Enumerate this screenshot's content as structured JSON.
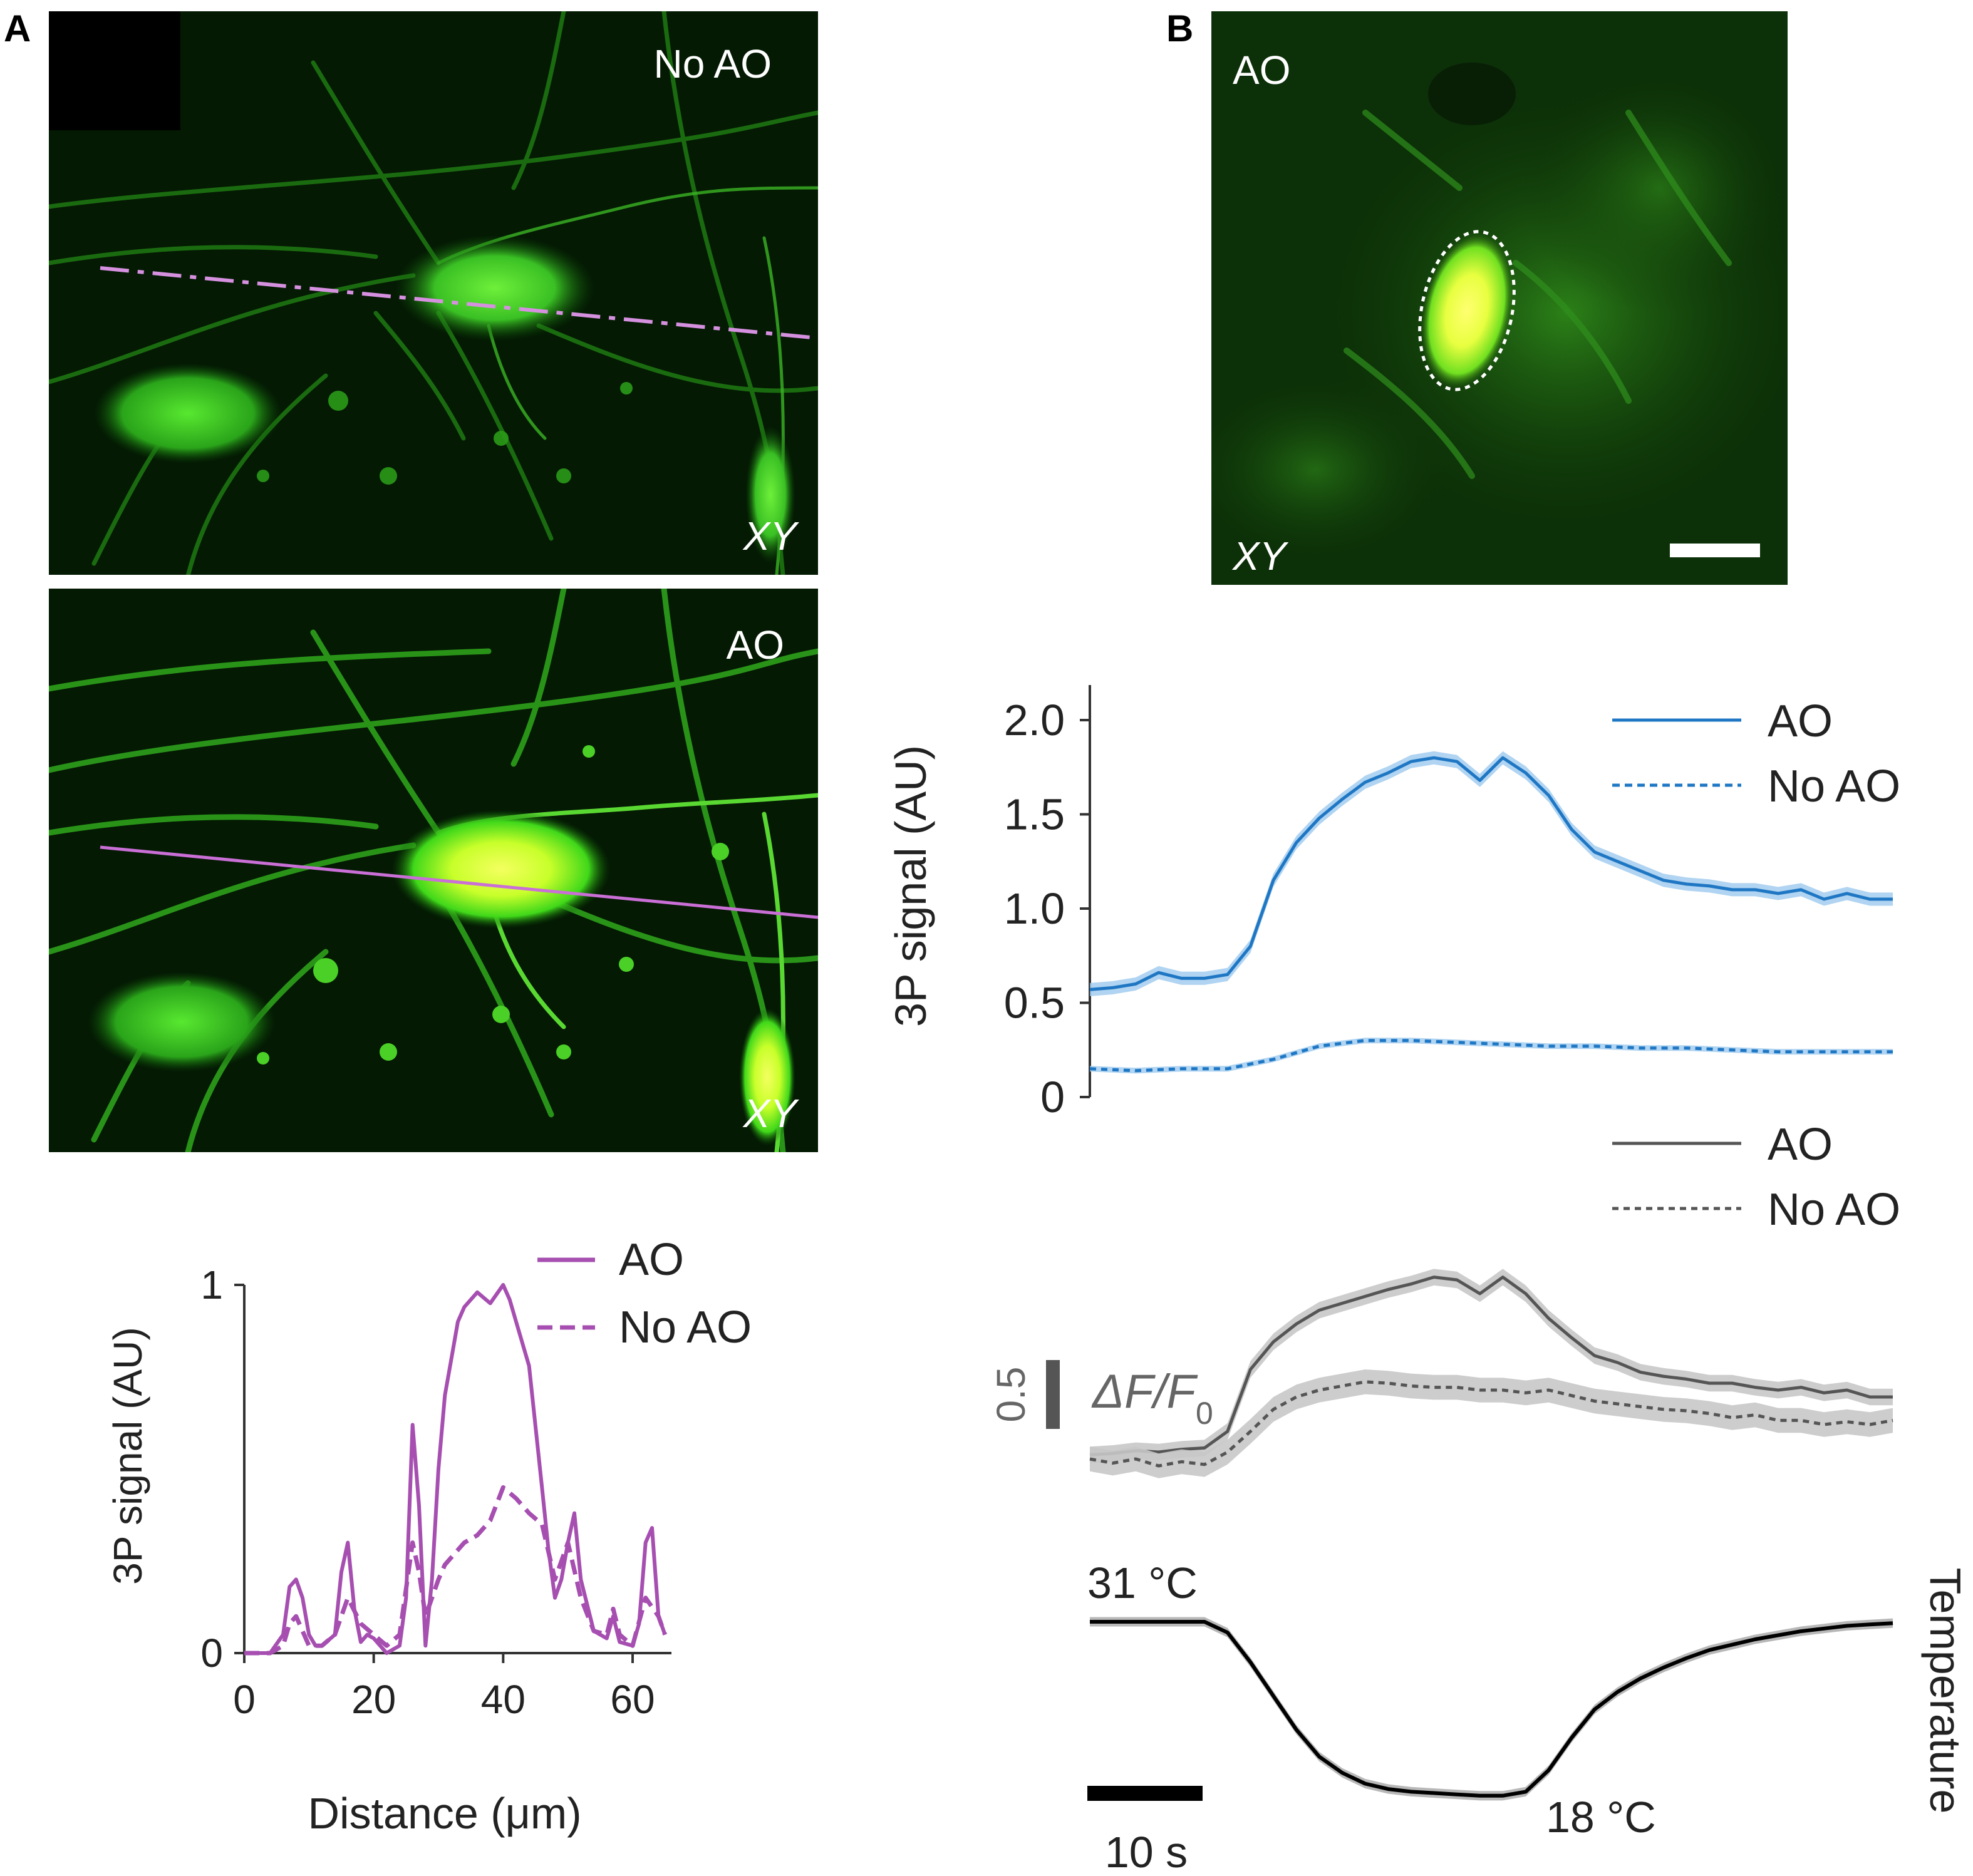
{
  "panels": {
    "a": {
      "letter": "A",
      "image_top": {
        "label": "No AO",
        "plane": "XY"
      },
      "image_bottom": {
        "label": "AO",
        "plane": "XY"
      },
      "colors": {
        "magenta": "#a64fb1"
      }
    },
    "b": {
      "letter": "B",
      "image": {
        "label": "AO",
        "plane": "XY"
      },
      "colors": {
        "blue": "#1f77c4",
        "grey": "#555555",
        "grey_band": "#c8c8c8"
      },
      "dff_scale": {
        "value": "0.5",
        "label_delta": "ΔF/F",
        "label_sub": "0"
      },
      "temperature": {
        "start": "31 °C",
        "end": "18 °C",
        "label": "Temperature",
        "time_scale": "10 s"
      }
    }
  },
  "chart_data": [
    {
      "type": "line",
      "panel": "A",
      "xlabel": "Distance (μm)",
      "ylabel": "3P signal (AU)",
      "xlim": [
        0,
        66
      ],
      "ylim": [
        0,
        1
      ],
      "xticks": [
        "0",
        "20",
        "40",
        "60"
      ],
      "yticks": [
        "0",
        "1"
      ],
      "legend": "top-right",
      "series": [
        {
          "name": "AO",
          "style": "solid",
          "x": [
            0,
            4,
            6,
            7,
            8,
            9,
            10,
            11,
            12,
            14,
            15,
            16,
            17,
            18,
            19,
            20,
            22,
            24,
            25,
            26,
            27,
            28,
            29,
            30,
            31,
            32,
            33,
            34,
            36,
            38,
            40,
            41,
            42,
            44,
            46,
            47,
            48,
            49,
            50,
            51,
            52,
            54,
            56,
            57,
            58,
            60,
            61,
            62,
            63,
            64,
            65
          ],
          "y": [
            0,
            0,
            0.05,
            0.18,
            0.2,
            0.15,
            0.05,
            0.02,
            0.02,
            0.05,
            0.22,
            0.3,
            0.12,
            0.03,
            0.05,
            0.04,
            0,
            0.02,
            0.15,
            0.62,
            0.4,
            0.02,
            0.2,
            0.5,
            0.7,
            0.8,
            0.9,
            0.94,
            0.98,
            0.95,
            1.0,
            0.96,
            0.9,
            0.78,
            0.45,
            0.28,
            0.15,
            0.2,
            0.3,
            0.38,
            0.2,
            0.06,
            0.04,
            0.1,
            0.03,
            0.02,
            0.08,
            0.3,
            0.34,
            0.1,
            0.05
          ]
        },
        {
          "name": "No AO",
          "style": "dashed",
          "x": [
            0,
            4,
            6,
            7,
            8,
            9,
            10,
            12,
            14,
            15,
            16,
            18,
            20,
            22,
            24,
            26,
            27,
            28,
            29,
            30,
            31,
            32,
            34,
            36,
            38,
            40,
            42,
            44,
            46,
            48,
            50,
            52,
            54,
            56,
            57,
            58,
            60,
            62,
            64,
            65
          ],
          "y": [
            0,
            0,
            0.02,
            0.08,
            0.1,
            0.06,
            0.02,
            0.02,
            0.05,
            0.1,
            0.15,
            0.08,
            0.05,
            0.02,
            0.05,
            0.3,
            0.22,
            0.1,
            0.15,
            0.2,
            0.24,
            0.26,
            0.3,
            0.32,
            0.36,
            0.45,
            0.42,
            0.38,
            0.35,
            0.2,
            0.3,
            0.15,
            0.06,
            0.05,
            0.12,
            0.05,
            0.02,
            0.15,
            0.1,
            0.05
          ]
        }
      ]
    },
    {
      "type": "line",
      "panel": "B",
      "ylabel": "3P signal (AU)",
      "ylim": [
        0,
        2.0
      ],
      "yticks": [
        "0",
        "0.5",
        "1.0",
        "1.5",
        "2.0"
      ],
      "legend": "top-right",
      "series": [
        {
          "name": "AO",
          "style": "solid",
          "x": [
            0,
            2,
            4,
            6,
            8,
            10,
            12,
            14,
            16,
            18,
            20,
            22,
            24,
            26,
            28,
            30,
            32,
            34,
            36,
            38,
            40,
            42,
            44,
            46,
            48,
            50,
            52,
            54,
            56,
            58,
            60,
            62,
            64,
            66,
            68,
            70
          ],
          "y": [
            0.57,
            0.58,
            0.6,
            0.66,
            0.63,
            0.63,
            0.65,
            0.8,
            1.15,
            1.35,
            1.48,
            1.58,
            1.67,
            1.72,
            1.78,
            1.8,
            1.78,
            1.68,
            1.8,
            1.72,
            1.6,
            1.42,
            1.3,
            1.25,
            1.2,
            1.15,
            1.13,
            1.12,
            1.1,
            1.1,
            1.08,
            1.1,
            1.05,
            1.08,
            1.05,
            1.05
          ]
        },
        {
          "name": "No AO",
          "style": "dashed",
          "x": [
            0,
            4,
            8,
            12,
            16,
            20,
            24,
            28,
            32,
            36,
            40,
            44,
            48,
            52,
            56,
            60,
            64,
            68,
            70
          ],
          "y": [
            0.15,
            0.14,
            0.15,
            0.15,
            0.2,
            0.27,
            0.3,
            0.3,
            0.29,
            0.28,
            0.27,
            0.27,
            0.26,
            0.26,
            0.25,
            0.24,
            0.24,
            0.24,
            0.24
          ]
        }
      ]
    },
    {
      "type": "line",
      "panel": "B",
      "series": [
        {
          "name": "AO",
          "style": "solid",
          "x": [
            0,
            2,
            4,
            6,
            8,
            10,
            12,
            14,
            16,
            18,
            20,
            22,
            24,
            26,
            28,
            30,
            32,
            34,
            36,
            38,
            40,
            42,
            44,
            46,
            48,
            50,
            52,
            54,
            56,
            58,
            60,
            62,
            64,
            66,
            68,
            70
          ],
          "y": [
            0.03,
            0.04,
            0.06,
            0.05,
            0.07,
            0.08,
            0.2,
            0.65,
            0.85,
            0.98,
            1.08,
            1.13,
            1.18,
            1.23,
            1.27,
            1.32,
            1.3,
            1.2,
            1.32,
            1.2,
            1.02,
            0.88,
            0.75,
            0.7,
            0.63,
            0.6,
            0.58,
            0.55,
            0.55,
            0.52,
            0.5,
            0.52,
            0.48,
            0.5,
            0.45,
            0.45
          ]
        },
        {
          "name": "No AO",
          "style": "dashed",
          "x": [
            0,
            2,
            4,
            6,
            8,
            10,
            12,
            14,
            16,
            18,
            20,
            22,
            24,
            26,
            28,
            30,
            32,
            34,
            36,
            38,
            40,
            42,
            44,
            46,
            48,
            50,
            52,
            54,
            56,
            58,
            60,
            62,
            64,
            66,
            68,
            70
          ],
          "y": [
            0,
            -0.03,
            0,
            -0.05,
            -0.02,
            -0.04,
            0.05,
            0.2,
            0.36,
            0.45,
            0.5,
            0.53,
            0.56,
            0.55,
            0.53,
            0.52,
            0.52,
            0.5,
            0.5,
            0.48,
            0.5,
            0.46,
            0.42,
            0.4,
            0.38,
            0.36,
            0.35,
            0.33,
            0.3,
            0.32,
            0.28,
            0.28,
            0.25,
            0.27,
            0.25,
            0.28
          ]
        }
      ]
    },
    {
      "type": "line",
      "panel": "B",
      "series": [
        {
          "name": "Temperature",
          "style": "solid",
          "x": [
            0,
            4,
            8,
            10,
            12,
            14,
            16,
            18,
            20,
            22,
            24,
            26,
            28,
            30,
            32,
            34,
            36,
            38,
            40,
            42,
            44,
            46,
            48,
            50,
            52,
            54,
            56,
            58,
            60,
            62,
            64,
            66,
            68,
            70
          ],
          "y": [
            31,
            31,
            31,
            31,
            30.2,
            28,
            25.5,
            23,
            21,
            19.8,
            19,
            18.6,
            18.4,
            18.3,
            18.2,
            18.1,
            18.1,
            18.4,
            20,
            22.4,
            24.5,
            25.8,
            26.8,
            27.6,
            28.3,
            28.9,
            29.3,
            29.7,
            30,
            30.3,
            30.5,
            30.7,
            30.8,
            30.9
          ]
        }
      ]
    }
  ]
}
